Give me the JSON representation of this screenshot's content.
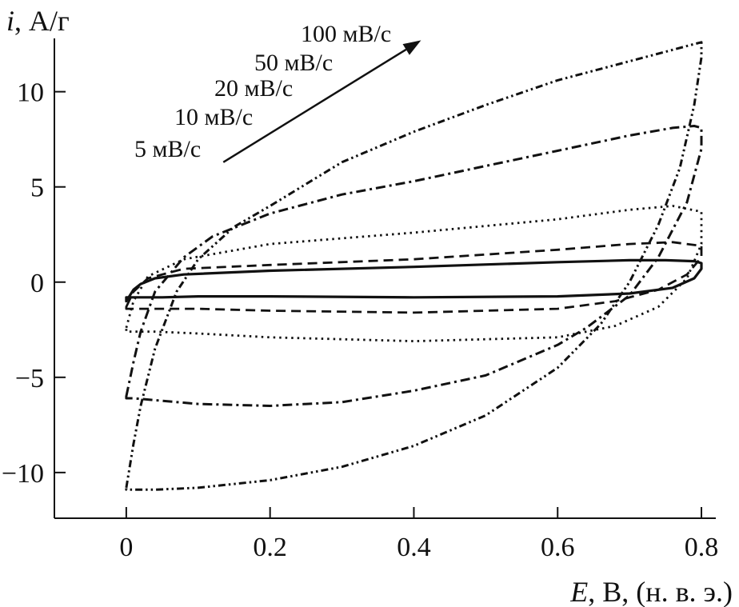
{
  "chart_data": {
    "type": "line",
    "title": "",
    "xlabel": {
      "var": "E",
      "unit": ", В, (н. в. э.)"
    },
    "ylabel": {
      "var": "i",
      "unit": ", А/г"
    },
    "xlim": [
      -0.1,
      0.82
    ],
    "ylim": [
      -12.4,
      12.8
    ],
    "x_ticks": [
      {
        "value": 0,
        "label": "0"
      },
      {
        "value": 0.2,
        "label": "0.2"
      },
      {
        "value": 0.4,
        "label": "0.4"
      },
      {
        "value": 0.6,
        "label": "0.6"
      },
      {
        "value": 0.8,
        "label": "0.8"
      }
    ],
    "y_ticks": [
      {
        "value": 10,
        "label": "10"
      },
      {
        "value": 5,
        "label": "5"
      },
      {
        "value": 0,
        "label": "0"
      },
      {
        "value": -5,
        "label": "−5"
      },
      {
        "value": -10,
        "label": "−10"
      }
    ],
    "grid": false,
    "legend": "none",
    "annotation_labels": [
      "100 мВ/с",
      "50 мВ/с",
      "20 мВ/с",
      "10 мВ/с",
      "5 мВ/с"
    ],
    "arrow": {
      "from": [
        0.135,
        6.3
      ],
      "to": [
        0.41,
        12.7
      ]
    },
    "series": [
      {
        "label": "5 мВ/с",
        "dash": "solid",
        "x": [
          0,
          0.01,
          0.02,
          0.04,
          0.08,
          0.2,
          0.4,
          0.6,
          0.7,
          0.75,
          0.79,
          0.8,
          0.8,
          0.79,
          0.76,
          0.7,
          0.6,
          0.4,
          0.2,
          0.1,
          0.05,
          0.02,
          0.0,
          0.0
        ],
        "y": [
          -1.0,
          -0.4,
          -0.1,
          0.2,
          0.4,
          0.6,
          0.8,
          1.05,
          1.15,
          1.15,
          1.1,
          1.0,
          0.7,
          0.2,
          -0.3,
          -0.6,
          -0.75,
          -0.8,
          -0.75,
          -0.75,
          -0.8,
          -0.8,
          -0.8,
          -1.0
        ]
      },
      {
        "label": "10 мВ/с",
        "dash": "dash",
        "x": [
          0,
          0.01,
          0.03,
          0.08,
          0.2,
          0.4,
          0.6,
          0.7,
          0.76,
          0.8,
          0.8,
          0.78,
          0.74,
          0.68,
          0.6,
          0.4,
          0.2,
          0.1,
          0.04,
          0.01,
          0.0,
          0.0
        ],
        "y": [
          -1.3,
          -0.5,
          0.2,
          0.7,
          0.9,
          1.2,
          1.7,
          2.0,
          2.1,
          1.9,
          1.3,
          0.4,
          -0.4,
          -1.0,
          -1.4,
          -1.6,
          -1.5,
          -1.4,
          -1.4,
          -1.4,
          -1.4,
          -1.3
        ]
      },
      {
        "label": "20 мВ/с",
        "dash": "dot",
        "x": [
          0,
          0.01,
          0.03,
          0.08,
          0.2,
          0.4,
          0.6,
          0.7,
          0.76,
          0.8,
          0.8,
          0.78,
          0.74,
          0.68,
          0.6,
          0.4,
          0.2,
          0.1,
          0.04,
          0.01,
          0.0,
          0.0
        ],
        "y": [
          -2.4,
          -1.0,
          0.3,
          1.2,
          2.0,
          2.6,
          3.3,
          3.8,
          4.0,
          3.7,
          2.0,
          0.2,
          -1.3,
          -2.3,
          -2.9,
          -3.1,
          -2.9,
          -2.7,
          -2.6,
          -2.6,
          -2.6,
          -2.4
        ]
      },
      {
        "label": "50 мВ/с",
        "dash": "dashdot",
        "x": [
          0,
          0.01,
          0.02,
          0.04,
          0.08,
          0.12,
          0.2,
          0.3,
          0.4,
          0.5,
          0.6,
          0.7,
          0.76,
          0.79,
          0.8,
          0.8,
          0.78,
          0.74,
          0.7,
          0.64,
          0.6,
          0.5,
          0.4,
          0.3,
          0.2,
          0.1,
          0.04,
          0.01,
          0.0,
          0.0
        ],
        "y": [
          -6.0,
          -4.2,
          -2.6,
          -0.5,
          1.3,
          2.4,
          3.6,
          4.6,
          5.3,
          6.1,
          6.9,
          7.7,
          8.1,
          8.2,
          8.1,
          7.0,
          4.2,
          1.3,
          -0.7,
          -2.4,
          -3.3,
          -4.9,
          -5.7,
          -6.3,
          -6.5,
          -6.4,
          -6.2,
          -6.1,
          -6.1,
          -6.0
        ]
      },
      {
        "label": "100 мВ/с",
        "dash": "dashdotdot",
        "x": [
          0,
          0.01,
          0.02,
          0.04,
          0.07,
          0.1,
          0.15,
          0.2,
          0.3,
          0.4,
          0.5,
          0.6,
          0.7,
          0.76,
          0.79,
          0.8,
          0.8,
          0.79,
          0.77,
          0.74,
          0.7,
          0.66,
          0.6,
          0.5,
          0.4,
          0.3,
          0.2,
          0.1,
          0.04,
          0.01,
          0.0,
          0.0
        ],
        "y": [
          -10.8,
          -8.5,
          -6.5,
          -3.5,
          -0.5,
          1.2,
          2.9,
          4.0,
          6.3,
          7.9,
          9.3,
          10.6,
          11.6,
          12.2,
          12.5,
          12.6,
          11.8,
          9.3,
          6.0,
          3.0,
          0.0,
          -2.2,
          -4.5,
          -7.0,
          -8.6,
          -9.7,
          -10.4,
          -10.8,
          -10.9,
          -10.9,
          -10.9,
          -10.8
        ]
      }
    ]
  }
}
